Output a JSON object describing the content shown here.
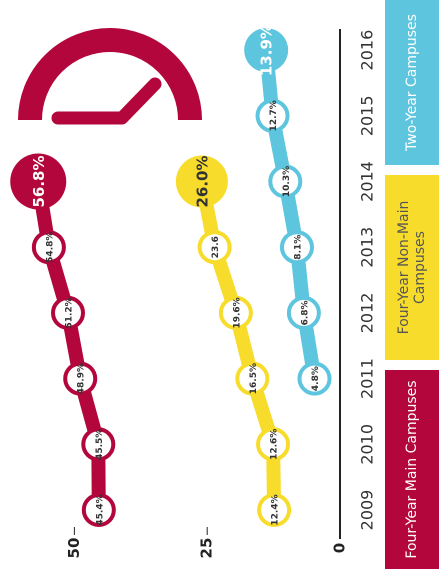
{
  "chart_data": {
    "type": "line",
    "categories": [
      "2009",
      "2010",
      "2011",
      "2012",
      "2013",
      "2014",
      "2015",
      "2016"
    ],
    "series": [
      {
        "name": "Four-Year Main Campuses",
        "color": "#b3063c",
        "values": [
          45.4,
          45.5,
          48.9,
          51.2,
          54.8,
          56.8,
          null,
          null
        ],
        "value_labels": [
          "45.4%",
          "45.5%",
          "48.9%",
          "51.2%",
          "54.8%",
          "56.8%",
          null,
          null
        ]
      },
      {
        "name": "Four-Year Non-Main Campuses",
        "color": "#f7dc2c",
        "values": [
          12.4,
          12.6,
          16.5,
          19.6,
          23.6,
          26.0,
          null,
          null
        ],
        "value_labels": [
          "12.4%",
          "12.6%",
          "16.5%",
          "19.6%",
          "23.6",
          "26.0%",
          null,
          null
        ]
      },
      {
        "name": "Two-Year Campuses",
        "color": "#5ec5de",
        "values": [
          null,
          null,
          4.8,
          6.8,
          8.1,
          10.3,
          12.7,
          13.9
        ],
        "value_labels": [
          null,
          null,
          "4.8%",
          "6.8%",
          "8.1%",
          "10.3%",
          "12.7%",
          "13.9%"
        ]
      }
    ],
    "ylim": [
      0,
      64
    ],
    "yticks": [
      0,
      25,
      50
    ]
  }
}
